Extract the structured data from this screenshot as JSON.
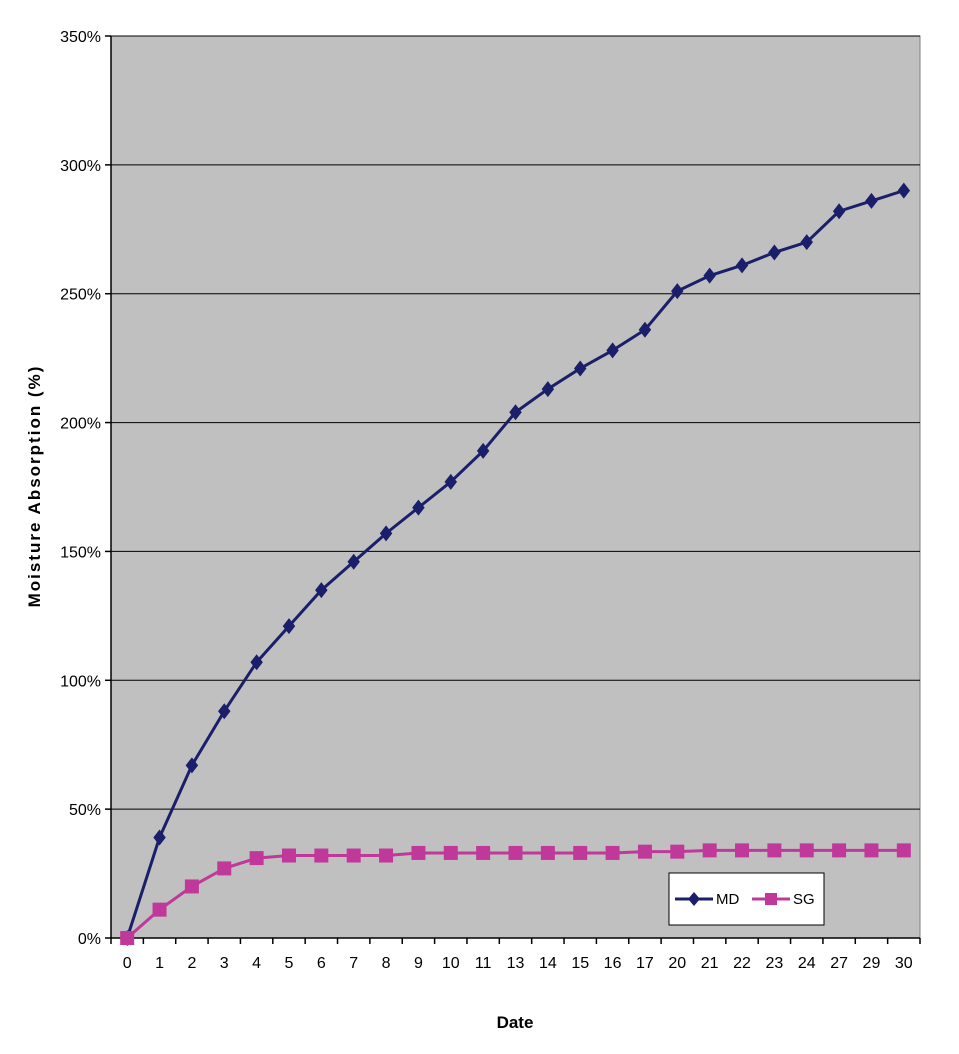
{
  "chart_data": {
    "type": "line",
    "title": "",
    "xlabel": "Date",
    "ylabel": "Moisture Absorption (%)",
    "categories": [
      "0",
      "1",
      "2",
      "3",
      "4",
      "5",
      "6",
      "7",
      "8",
      "9",
      "10",
      "11",
      "13",
      "14",
      "15",
      "16",
      "17",
      "20",
      "21",
      "22",
      "23",
      "24",
      "27",
      "29",
      "30"
    ],
    "ylim": [
      0,
      350
    ],
    "ytick_values": [
      0,
      50,
      100,
      150,
      200,
      250,
      300,
      350
    ],
    "ytick_labels": [
      "0%",
      "50%",
      "100%",
      "150%",
      "200%",
      "250%",
      "300%",
      "350%"
    ],
    "grid": true,
    "legend_position": "bottom-right",
    "plot_background": "#c0c0c0",
    "series": [
      {
        "name": "MD",
        "color": "#1b1f6b",
        "marker": "diamond",
        "values": [
          0,
          39,
          67,
          88,
          107,
          121,
          135,
          146,
          157,
          167,
          177,
          189,
          204,
          213,
          221,
          228,
          236,
          251,
          257,
          261,
          266,
          270,
          282,
          286,
          290
        ]
      },
      {
        "name": "SG",
        "color": "#c0399a",
        "marker": "square",
        "values": [
          0,
          11,
          20,
          27,
          31,
          32,
          32,
          32,
          32,
          33,
          33,
          33,
          33,
          33,
          33,
          33,
          33.5,
          33.5,
          34,
          34,
          34,
          34,
          34,
          34,
          34
        ]
      }
    ]
  }
}
